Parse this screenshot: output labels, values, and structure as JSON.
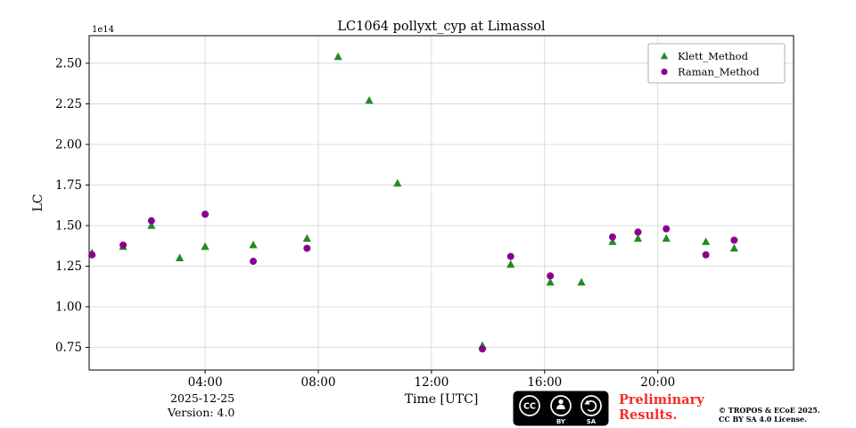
{
  "colors": {
    "klett_green": "#228b22",
    "raman_purple": "#8b008b",
    "preliminary_red": "#f03028",
    "grid_gray": "#d3d3d3",
    "page_background": "#ffffff"
  },
  "chart_data": {
    "type": "scatter",
    "title": "LC1064 pollyxt_cyp at Limassol",
    "xlabel": "Time [UTC]",
    "ylabel": "LC",
    "offset_label": "1e14",
    "grid": true,
    "xlim": [
      -0.1,
      24.8
    ],
    "ylim": [
      0.61,
      2.67
    ],
    "x_ticks": [
      4,
      8,
      12,
      16,
      20
    ],
    "x_tick_labels": [
      "04:00",
      "08:00",
      "12:00",
      "16:00",
      "20:00"
    ],
    "y_ticks": [
      0.75,
      1.0,
      1.25,
      1.5,
      1.75,
      2.0,
      2.25,
      2.5
    ],
    "y_tick_labels": [
      "0.75",
      "1.00",
      "1.25",
      "1.50",
      "1.75",
      "2.00",
      "2.25",
      "2.50"
    ],
    "legend": {
      "position": "top-right",
      "entries": [
        "Klett_Method",
        "Raman_Method"
      ]
    },
    "series": [
      {
        "name": "Klett_Method",
        "marker": "triangle",
        "color": "#228b22",
        "x": [
          0.0,
          1.1,
          2.1,
          3.1,
          4.0,
          5.7,
          7.6,
          8.7,
          9.8,
          10.8,
          13.8,
          14.8,
          16.2,
          17.3,
          18.4,
          19.3,
          20.3,
          21.7,
          22.7
        ],
        "y": [
          1.33,
          1.37,
          1.5,
          1.3,
          1.37,
          1.38,
          1.42,
          2.54,
          2.27,
          1.76,
          0.76,
          1.26,
          1.15,
          1.15,
          1.4,
          1.42,
          1.42,
          1.4,
          1.36
        ]
      },
      {
        "name": "Raman_Method",
        "marker": "circle",
        "color": "#8b008b",
        "x": [
          0.0,
          1.1,
          2.1,
          4.0,
          5.7,
          7.6,
          13.8,
          14.8,
          16.2,
          18.4,
          19.3,
          20.3,
          21.7,
          22.7
        ],
        "y": [
          1.32,
          1.38,
          1.53,
          1.57,
          1.28,
          1.36,
          0.74,
          1.31,
          1.19,
          1.43,
          1.46,
          1.48,
          1.32,
          1.41
        ]
      }
    ]
  },
  "footer": {
    "date": "2025-12-25",
    "version": "Version: 4.0",
    "preliminary_line1": "Preliminary",
    "preliminary_line2": "Results.",
    "copyright_line1": "© TROPOS & ECoE 2025.",
    "copyright_line2": "CC BY SA 4.0 License.",
    "cc_badge": {
      "cc": "CC",
      "by": "BY",
      "sa": "SA"
    }
  }
}
